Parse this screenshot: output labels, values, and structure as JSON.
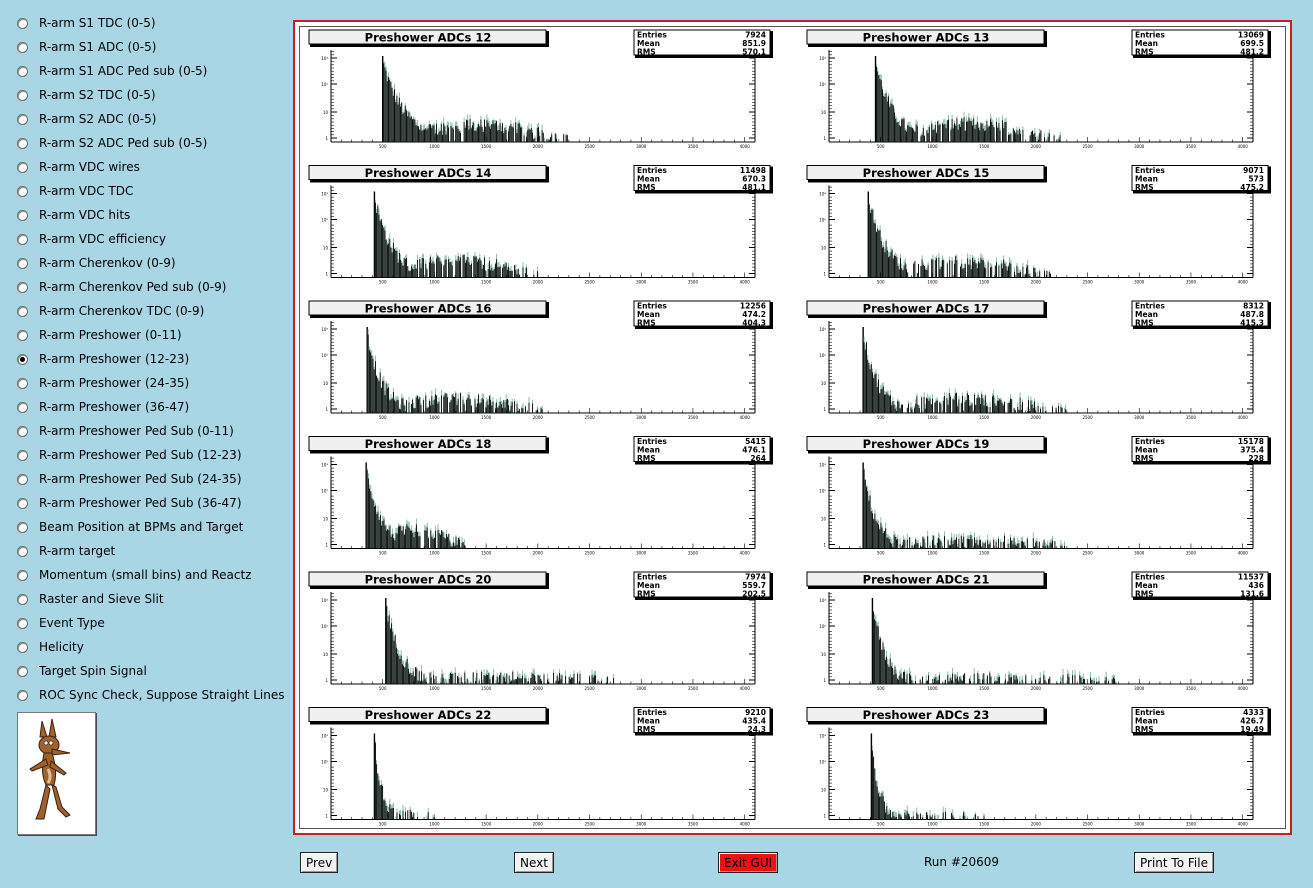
{
  "sidebar": {
    "selected_index": 14,
    "items": [
      "R-arm S1 TDC (0-5)",
      "R-arm S1 ADC (0-5)",
      "R-arm S1 ADC Ped sub (0-5)",
      "R-arm S2 TDC (0-5)",
      "R-arm S2 ADC (0-5)",
      "R-arm S2 ADC Ped sub (0-5)",
      "R-arm VDC wires",
      "R-arm VDC TDC",
      "R-arm VDC hits",
      "R-arm VDC efficiency",
      "R-arm Cherenkov (0-9)",
      "R-arm Cherenkov Ped sub (0-9)",
      "R-arm Cherenkov TDC (0-9)",
      "R-arm Preshower (0-11)",
      "R-arm Preshower (12-23)",
      "R-arm Preshower (24-35)",
      "R-arm Preshower (36-47)",
      "R-arm Preshower Ped Sub (0-11)",
      "R-arm Preshower Ped Sub (12-23)",
      "R-arm Preshower Ped Sub (24-35)",
      "R-arm Preshower Ped Sub (36-47)",
      "Beam Position at BPMs and Target",
      "R-arm target",
      "Momentum (small bins) and Reactz",
      "Raster and Sieve Slit",
      "Event Type",
      "Helicity",
      "Target Spin Signal",
      "ROC Sync Check, Suppose Straight Lines"
    ]
  },
  "buttons": {
    "prev": "Prev",
    "next": "Next",
    "exit": "Exit GUI",
    "print": "Print To File"
  },
  "run_label": "Run #20609",
  "colors": {
    "background": "#a9d6e5",
    "canvas_border": "#c82020",
    "exit_button": "#ee1111",
    "fill": "#7fb79f"
  },
  "stat_labels": {
    "entries": "Entries",
    "mean": "Mean",
    "rms": "RMS"
  },
  "chart_data": [
    {
      "type": "bar",
      "title": "Preshower ADCs 12",
      "entries": "7924",
      "mean": "851.9",
      "rms": "570.1",
      "peak_x": 500,
      "tail_end": 2300,
      "hump": 0.55,
      "decay": 0.02
    },
    {
      "type": "bar",
      "title": "Preshower ADCs 13",
      "entries": "13069",
      "mean": "699.5",
      "rms": "481.2",
      "peak_x": 450,
      "tail_end": 2250,
      "hump": 0.6,
      "decay": 0.025
    },
    {
      "type": "bar",
      "title": "Preshower ADCs 14",
      "entries": "11498",
      "mean": "670.3",
      "rms": "481.1",
      "peak_x": 420,
      "tail_end": 2000,
      "hump": 0.55,
      "decay": 0.025
    },
    {
      "type": "bar",
      "title": "Preshower ADCs 15",
      "entries": "9071",
      "mean": "573",
      "rms": "475.2",
      "peak_x": 380,
      "tail_end": 2150,
      "hump": 0.5,
      "decay": 0.025
    },
    {
      "type": "bar",
      "title": "Preshower ADCs 16",
      "entries": "12256",
      "mean": "474.2",
      "rms": "404.3",
      "peak_x": 350,
      "tail_end": 2050,
      "hump": 0.45,
      "decay": 0.03
    },
    {
      "type": "bar",
      "title": "Preshower ADCs 17",
      "entries": "8312",
      "mean": "487.8",
      "rms": "415.3",
      "peak_x": 330,
      "tail_end": 2300,
      "hump": 0.45,
      "decay": 0.03
    },
    {
      "type": "bar",
      "title": "Preshower ADCs 18",
      "entries": "5415",
      "mean": "476.1",
      "rms": "264",
      "peak_x": 340,
      "tail_end": 1300,
      "hump": 0.6,
      "decay": 0.03
    },
    {
      "type": "bar",
      "title": "Preshower ADCs 19",
      "entries": "15178",
      "mean": "375.4",
      "rms": "228",
      "peak_x": 330,
      "tail_end": 2300,
      "hump": 0.25,
      "decay": 0.035
    },
    {
      "type": "bar",
      "title": "Preshower ADCs 20",
      "entries": "7974",
      "mean": "559.7",
      "rms": "202.5",
      "peak_x": 530,
      "tail_end": 2800,
      "hump": 0.2,
      "decay": 0.03
    },
    {
      "type": "bar",
      "title": "Preshower ADCs 21",
      "entries": "11537",
      "mean": "436",
      "rms": "131.6",
      "peak_x": 420,
      "tail_end": 2850,
      "hump": 0.15,
      "decay": 0.035
    },
    {
      "type": "bar",
      "title": "Preshower ADCs 22",
      "entries": "9210",
      "mean": "435.4",
      "rms": "24.3",
      "peak_x": 420,
      "tail_end": 1000,
      "hump": 0.1,
      "decay": 0.06
    },
    {
      "type": "bar",
      "title": "Preshower ADCs 23",
      "entries": "4333",
      "mean": "426.7",
      "rms": "19.49",
      "peak_x": 410,
      "tail_end": 1500,
      "hump": 0.05,
      "decay": 0.06
    }
  ],
  "x_ticks": [
    "500",
    "1000",
    "1500",
    "2000",
    "2500",
    "3000",
    "3500",
    "4000"
  ],
  "y_ticks": [
    "10³",
    "10²",
    "10",
    "1"
  ]
}
